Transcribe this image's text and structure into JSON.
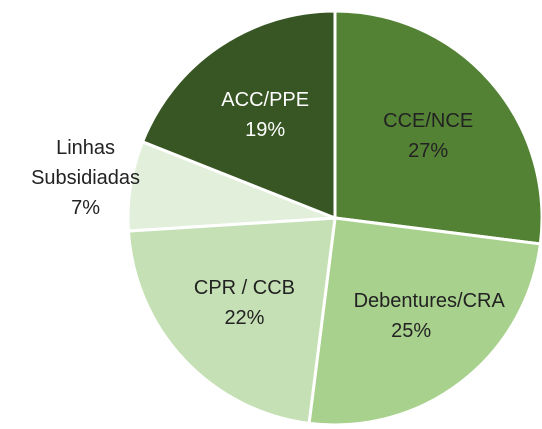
{
  "chart_data": {
    "type": "pie",
    "categories": [
      "CCE/NCE",
      "Debentures/CRA",
      "CPR / CCB",
      "Linhas Subsidiadas",
      "ACC/PPE"
    ],
    "values": [
      27,
      25,
      22,
      7,
      19
    ],
    "value_labels": [
      "27%",
      "25%",
      "22%",
      "7%",
      "19%"
    ],
    "colors": [
      "#548235",
      "#a9d18e",
      "#c5e0b4",
      "#e2efda",
      "#375623"
    ]
  }
}
